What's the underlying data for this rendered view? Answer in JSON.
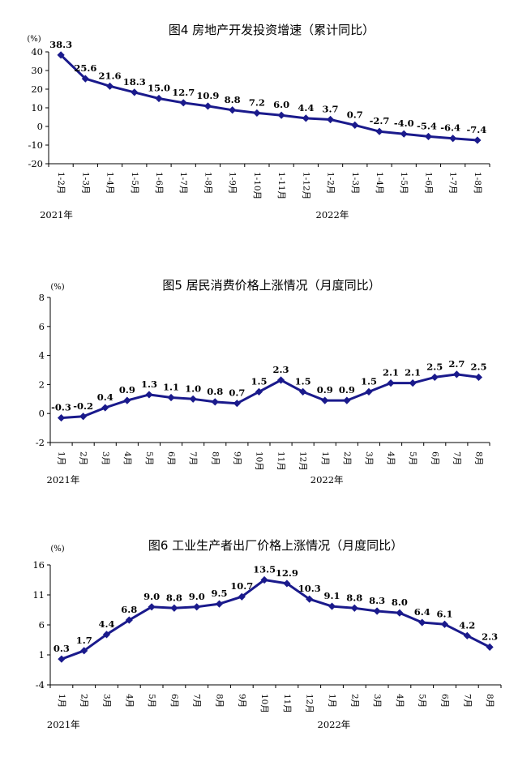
{
  "chart_data": [
    {
      "type": "line",
      "title": "图4   房地产开发投资增速（累计同比）",
      "unit": "(%)",
      "ylim": [
        -20,
        40
      ],
      "yticks": [
        -20,
        -10,
        0,
        10,
        20,
        30,
        40
      ],
      "categories": [
        "1-2月",
        "1-3月",
        "1-4月",
        "1-5月",
        "1-6月",
        "1-7月",
        "1-8月",
        "1-9月",
        "1-10月",
        "1-11月",
        "1-12月",
        "1-2月",
        "1-3月",
        "1-4月",
        "1-5月",
        "1-6月",
        "1-7月",
        "1-8月"
      ],
      "values": [
        38.3,
        25.6,
        21.6,
        18.3,
        15.0,
        12.7,
        10.9,
        8.8,
        7.2,
        6.0,
        4.4,
        3.7,
        0.7,
        -2.7,
        -4.0,
        -5.4,
        -6.4,
        -7.4
      ],
      "labels": [
        "38.3",
        "25.6",
        "21.6",
        "18.3",
        "15.0",
        "12.7",
        "10.9",
        "8.8",
        "7.2",
        "6.0",
        "4.4",
        "3.7",
        "0.7",
        "-2.7",
        "-4.0",
        "-5.4",
        "-6.4",
        "-7.4"
      ],
      "years": [
        {
          "text": "2021年",
          "index": 0
        },
        {
          "text": "2022年",
          "index": 11
        }
      ],
      "color": "#1a1a8c",
      "grid": false
    },
    {
      "type": "line",
      "title": "图5   居民消费价格上涨情况（月度同比）",
      "unit": "(%)",
      "ylim": [
        -2,
        8
      ],
      "yticks": [
        -2,
        0,
        2,
        4,
        6,
        8
      ],
      "categories": [
        "1月",
        "2月",
        "3月",
        "4月",
        "5月",
        "6月",
        "7月",
        "8月",
        "9月",
        "10月",
        "11月",
        "12月",
        "1月",
        "2月",
        "3月",
        "4月",
        "5月",
        "6月",
        "7月",
        "8月"
      ],
      "values": [
        -0.3,
        -0.2,
        0.4,
        0.9,
        1.3,
        1.1,
        1.0,
        0.8,
        0.7,
        1.5,
        2.3,
        1.5,
        0.9,
        0.9,
        1.5,
        2.1,
        2.1,
        2.5,
        2.7,
        2.5
      ],
      "labels": [
        "-0.3",
        "-0.2",
        "0.4",
        "0.9",
        "1.3",
        "1.1",
        "1.0",
        "0.8",
        "0.7",
        "1.5",
        "2.3",
        "1.5",
        "0.9",
        "0.9",
        "1.5",
        "2.1",
        "2.1",
        "2.5",
        "2.7",
        "2.5"
      ],
      "years": [
        {
          "text": "2021年",
          "index": 0
        },
        {
          "text": "2022年",
          "index": 12
        }
      ],
      "color": "#1a1a8c",
      "grid": false
    },
    {
      "type": "line",
      "title": "图6   工业生产者出厂价格上涨情况（月度同比）",
      "unit": "(%)",
      "ylim": [
        -4,
        16
      ],
      "yticks": [
        -4,
        1,
        6,
        11,
        16
      ],
      "categories": [
        "1月",
        "2月",
        "3月",
        "4月",
        "5月",
        "6月",
        "7月",
        "8月",
        "9月",
        "10月",
        "11月",
        "12月",
        "1月",
        "2月",
        "3月",
        "4月",
        "5月",
        "6月",
        "7月",
        "8月"
      ],
      "values": [
        0.3,
        1.7,
        4.4,
        6.8,
        9.0,
        8.8,
        9.0,
        9.5,
        10.7,
        13.5,
        12.9,
        10.3,
        9.1,
        8.8,
        8.3,
        8.0,
        6.4,
        6.1,
        4.2,
        2.3
      ],
      "labels": [
        "0.3",
        "1.7",
        "4.4",
        "6.8",
        "9.0",
        "8.8",
        "9.0",
        "9.5",
        "10.7",
        "13.5",
        "12.9",
        "10.3",
        "9.1",
        "8.8",
        "8.3",
        "8.0",
        "6.4",
        "6.1",
        "4.2",
        "2.3"
      ],
      "years": [
        {
          "text": "2021年",
          "index": 0
        },
        {
          "text": "2022年",
          "index": 12
        }
      ],
      "color": "#1a1a8c",
      "grid": false
    }
  ]
}
